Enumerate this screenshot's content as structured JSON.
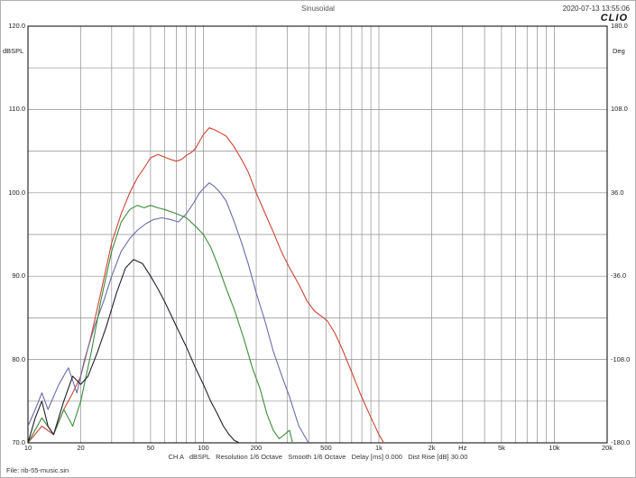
{
  "header": {
    "title": "Sinusoidal",
    "timestamp": "2020-07-13 13:55:06",
    "logo": "CLIO"
  },
  "left_axis": {
    "unit": "dBSPL",
    "ticks": [
      {
        "value": 120,
        "label": "120.0"
      },
      {
        "value": 110,
        "label": "110.0"
      },
      {
        "value": 100,
        "label": "100.0"
      },
      {
        "value": 90,
        "label": "90.0"
      },
      {
        "value": 80,
        "label": "80.0"
      },
      {
        "value": 70,
        "label": "70.0"
      }
    ]
  },
  "right_axis": {
    "unit": "Deg",
    "ticks": [
      {
        "at_db": 120,
        "label": "180.0"
      },
      {
        "at_db": 110,
        "label": "108.0"
      },
      {
        "at_db": 100,
        "label": "36.0"
      },
      {
        "at_db": 90,
        "label": "-36.0"
      },
      {
        "at_db": 80,
        "label": "-108.0"
      },
      {
        "at_db": 70,
        "label": "-180.0"
      }
    ]
  },
  "x_axis": {
    "unit": "Hz",
    "unit_hz": 3000,
    "ticks": [
      {
        "hz": 10,
        "label": "10"
      },
      {
        "hz": 20,
        "label": "20"
      },
      {
        "hz": 50,
        "label": "50"
      },
      {
        "hz": 100,
        "label": "100"
      },
      {
        "hz": 200,
        "label": "200"
      },
      {
        "hz": 500,
        "label": "500"
      },
      {
        "hz": 1000,
        "label": "1k"
      },
      {
        "hz": 2000,
        "label": "2k"
      },
      {
        "hz": 5000,
        "label": "5k"
      },
      {
        "hz": 10000,
        "label": "10k"
      },
      {
        "hz": 20000,
        "label": "20k"
      }
    ]
  },
  "footer": {
    "info": "CH A   dBSPL   Resolution 1/6 Octave   Smooth 1/6 Octave   Delay [ms] 0.000   Dist Rise [dB] 30.00",
    "file": "File: rib-55-music.sin"
  },
  "chart_data": {
    "type": "line",
    "title": "Sinusoidal",
    "xlabel": "Hz",
    "ylabel": "dBSPL",
    "y2label": "Deg",
    "xscale": "log",
    "xlim": [
      10,
      20000
    ],
    "ylim": [
      70,
      120
    ],
    "y2lim": [
      -180,
      180
    ],
    "grid": true,
    "grid_minor_db_step": 5,
    "legend_position": "none",
    "series": [
      {
        "name": "red-curve",
        "color": "#cc4433",
        "x": [
          10,
          12,
          14,
          16,
          18,
          20,
          23,
          26,
          30,
          34,
          38,
          42,
          46,
          50,
          55,
          60,
          65,
          70,
          75,
          80,
          85,
          90,
          95,
          100,
          108,
          115,
          125,
          135,
          150,
          165,
          180,
          200,
          225,
          250,
          280,
          310,
          350,
          390,
          430,
          470,
          510,
          560,
          620,
          700,
          780,
          880,
          1000,
          1100
        ],
        "y": [
          70,
          72,
          71,
          74,
          76,
          78,
          83,
          88,
          94,
          97.5,
          100,
          101.8,
          103,
          104.2,
          104.6,
          104.3,
          104,
          103.8,
          104,
          104.5,
          104.8,
          105.3,
          106.2,
          107,
          107.8,
          107.6,
          107.2,
          106.8,
          105.5,
          104,
          102.5,
          100,
          97.5,
          95.3,
          92.8,
          91,
          89,
          87,
          85.8,
          85.2,
          84.6,
          83.2,
          81.2,
          78.5,
          76,
          73.5,
          71,
          69.5
        ]
      },
      {
        "name": "blue-curve",
        "color": "#6b6baa",
        "x": [
          10,
          11,
          12,
          13,
          15,
          17,
          19,
          21,
          24,
          27,
          30,
          34,
          38,
          42,
          47,
          52,
          58,
          65,
          72,
          80,
          88,
          95,
          100,
          108,
          115,
          125,
          135,
          150,
          165,
          180,
          200,
          225,
          250,
          280,
          310,
          350,
          390,
          420
        ],
        "y": [
          72,
          74,
          76,
          74,
          77,
          79,
          76,
          80,
          84,
          87,
          90,
          93,
          94.5,
          95.5,
          96.3,
          96.8,
          97,
          96.8,
          96.5,
          97.5,
          98.8,
          100,
          100.5,
          101.2,
          100.8,
          100,
          99,
          96.5,
          94,
          91.5,
          88,
          84.5,
          81,
          78,
          75.5,
          72,
          70.3,
          69
        ]
      },
      {
        "name": "green-curve",
        "color": "#3d8b3d",
        "x": [
          10,
          12,
          14,
          16,
          18,
          20,
          23,
          26,
          30,
          34,
          38,
          42,
          46,
          50,
          55,
          60,
          70,
          80,
          90,
          100,
          110,
          120,
          135,
          150,
          170,
          190,
          210,
          230,
          250,
          270,
          290,
          310,
          330
        ],
        "y": [
          70,
          73,
          71,
          74,
          72,
          75,
          81,
          87,
          93,
          96.5,
          98,
          98.5,
          98.2,
          98.5,
          98.2,
          98,
          97.5,
          97,
          96,
          95,
          93.5,
          91.5,
          88.5,
          86,
          82.5,
          79,
          76.5,
          73.5,
          71.5,
          70.5,
          71,
          71.5,
          69
        ]
      },
      {
        "name": "black-curve",
        "color": "#20202e",
        "x": [
          10,
          11,
          12,
          13,
          14,
          16,
          18,
          20,
          22,
          25,
          28,
          32,
          36,
          40,
          45,
          50,
          55,
          60,
          70,
          80,
          90,
          100,
          110,
          120,
          130,
          140,
          150,
          160,
          170
        ],
        "y": [
          70,
          73,
          75,
          72,
          71,
          75,
          78,
          77,
          78,
          81,
          84,
          88,
          91,
          92,
          91.5,
          90,
          88.5,
          87,
          84,
          81.5,
          79,
          77,
          75,
          73.5,
          72,
          71,
          70.3,
          70,
          69
        ]
      }
    ]
  }
}
